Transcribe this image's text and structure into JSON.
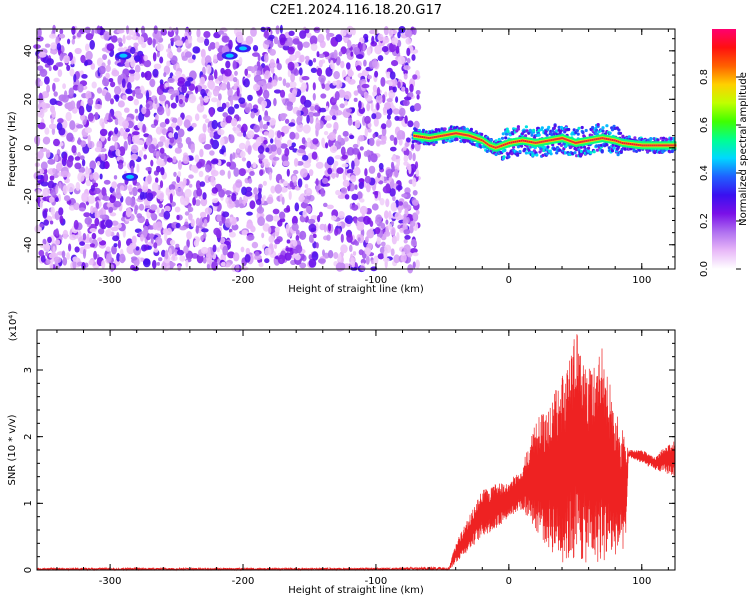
{
  "title": "C2E1.2024.116.18.20.G17",
  "charts": [
    {
      "type": "heatmap",
      "xlabel": "Height of straight line (km)",
      "ylabel": "Frequency (Hz)",
      "xlim": [
        -355,
        125
      ],
      "ylim": [
        -50,
        49
      ],
      "xticks": [
        -300,
        -200,
        -100,
        0,
        100
      ],
      "yticks": [
        -40,
        -20,
        0,
        20,
        40
      ],
      "colorbar": {
        "label": "Normalized spectral amplitude",
        "range": [
          0.0,
          1.0
        ],
        "ticks": [
          "0.0",
          "0.2",
          "0.4",
          "0.6",
          "0.8"
        ],
        "colormap": [
          "#ffffff",
          "#e8b8f8",
          "#b070f0",
          "#7a10e8",
          "#3a10f0",
          "#2060ff",
          "#00d8ff",
          "#00ff90",
          "#40ff00",
          "#c0ff00",
          "#ffd000",
          "#ff6000",
          "#ff1010",
          "#ff0070"
        ]
      },
      "noise_region": {
        "x_range": [
          -355,
          -68
        ],
        "amplitude_range": [
          0.05,
          0.3
        ]
      },
      "signal_trace": {
        "x": [
          -72,
          -60,
          -50,
          -40,
          -30,
          -20,
          -15,
          -10,
          -5,
          0,
          10,
          20,
          30,
          40,
          50,
          60,
          70,
          80,
          85,
          100,
          125
        ],
        "freq": [
          5,
          4,
          5,
          6,
          5,
          3,
          1,
          0,
          1,
          2,
          3,
          2,
          3,
          4,
          2,
          3,
          4,
          3,
          2,
          1,
          1
        ],
        "amplitude": 0.95
      },
      "hotspots": [
        {
          "x": -290,
          "freq": 38
        },
        {
          "x": -285,
          "freq": -12
        },
        {
          "x": -210,
          "freq": 38
        },
        {
          "x": -200,
          "freq": 41
        }
      ]
    },
    {
      "type": "line",
      "xlabel": "Height of straight line (km)",
      "ylabel": "SNR (10 * v/v)",
      "yscale_note": "(x10⁴)",
      "xlim": [
        -355,
        125
      ],
      "ylim": [
        0,
        3.6
      ],
      "xticks": [
        -300,
        -200,
        -100,
        0,
        100
      ],
      "yticks": [
        0,
        1,
        2,
        3
      ],
      "color": "#ee2222",
      "envelope": {
        "x": [
          -355,
          -100,
          -45,
          -40,
          -30,
          -20,
          -10,
          0,
          10,
          20,
          30,
          40,
          50,
          60,
          70,
          80,
          88,
          90,
          100,
          110,
          125
        ],
        "min": [
          0.0,
          0.0,
          0.0,
          0.1,
          0.3,
          0.5,
          0.6,
          0.8,
          0.9,
          0.6,
          0.3,
          0.1,
          0.1,
          0.1,
          0.1,
          0.2,
          0.3,
          1.7,
          1.6,
          1.5,
          1.4
        ],
        "max": [
          0.03,
          0.03,
          0.05,
          0.4,
          0.8,
          1.2,
          1.3,
          1.3,
          1.6,
          2.2,
          2.6,
          2.9,
          3.6,
          3.1,
          3.4,
          2.4,
          2.0,
          1.8,
          1.8,
          1.7,
          2.0
        ]
      }
    }
  ]
}
